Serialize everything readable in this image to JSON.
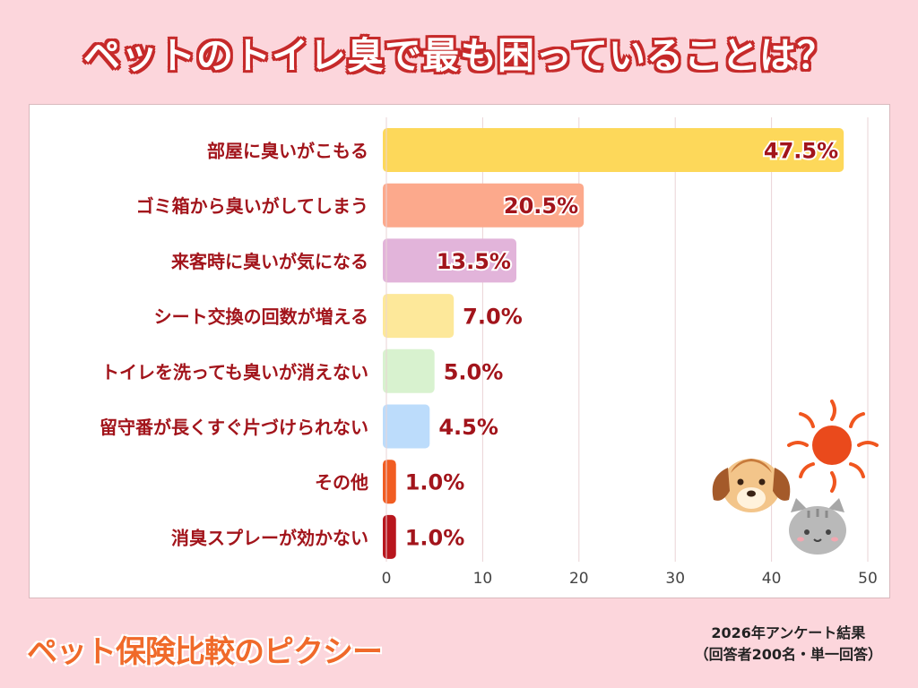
{
  "header": {
    "title": "ペットのトイレ臭で最も困っていることは？"
  },
  "footer": {
    "brand": "ペット保険比較のピクシー",
    "note_line1": "2026年アンケート結果",
    "note_line2": "（回答者200名・単一回答）"
  },
  "chart_data": {
    "type": "bar",
    "orientation": "horizontal",
    "title": "ペットのトイレ臭で最も困っていることは？",
    "categories": [
      "部屋に臭いがこもる",
      "ゴミ箱から臭いがしてしまう",
      "来客時に臭いが気になる",
      "シート交換の回数が増える",
      "トイレを洗っても臭いが消えない",
      "留守番が長くすぐ片づけられない",
      "その他",
      "消臭スプレーが効かない"
    ],
    "values": [
      47.5,
      20.5,
      13.5,
      7.0,
      5.0,
      4.5,
      1.0,
      1.0
    ],
    "value_labels": [
      "47.5%",
      "20.5%",
      "13.5%",
      "7.0%",
      "5.0%",
      "4.5%",
      "1.0%",
      "1.0%"
    ],
    "colors": [
      "#fdd85a",
      "#fca98c",
      "#e2b4da",
      "#fde89a",
      "#d8f2cf",
      "#bcdcfb",
      "#f15d22",
      "#b8161d"
    ],
    "xlim": [
      0,
      50
    ],
    "xticks": [
      0,
      10,
      20,
      30,
      40,
      50
    ],
    "xtick_labels": [
      "0",
      "10",
      "20",
      "30",
      "40",
      "50"
    ],
    "grid": true
  }
}
